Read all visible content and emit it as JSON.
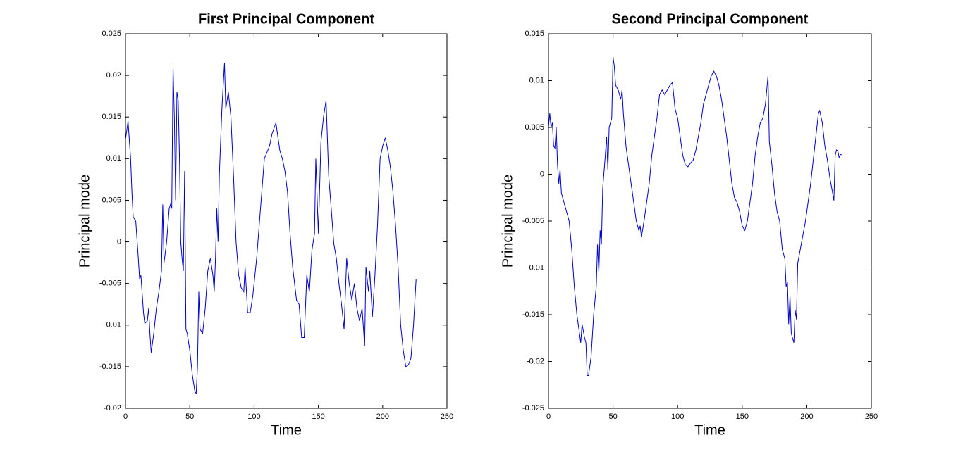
{
  "chart_data": [
    {
      "type": "line",
      "title": "First Principal Component",
      "x_label": "Time",
      "y_label": "Principal mode",
      "color": "#0000cc",
      "xlim": [
        0,
        250
      ],
      "xticks": [
        0,
        50,
        100,
        150,
        200,
        250
      ],
      "ylim": [
        -0.02,
        0.025
      ],
      "yticks": [
        -0.02,
        -0.015,
        -0.01,
        -0.005,
        0,
        0.005,
        0.01,
        0.015,
        0.02,
        0.025
      ],
      "x": [
        0,
        2,
        4,
        5,
        6,
        8,
        10,
        11,
        12,
        14,
        15,
        17,
        18,
        19,
        20,
        22,
        24,
        26,
        28,
        29,
        30,
        32,
        34,
        35,
        36,
        37,
        38,
        39,
        40,
        41,
        42,
        43,
        44,
        45,
        46,
        47,
        48,
        50,
        52,
        54,
        55,
        56,
        57,
        58,
        60,
        62,
        64,
        66,
        68,
        69,
        70,
        71,
        72,
        73,
        75,
        77,
        78,
        80,
        82,
        84,
        86,
        88,
        90,
        92,
        93,
        95,
        97,
        99,
        102,
        105,
        108,
        112,
        114,
        117,
        120,
        122,
        124,
        126,
        128,
        130,
        133,
        135,
        137,
        139,
        141,
        143,
        145,
        147,
        148,
        150,
        152,
        154,
        156,
        158,
        160,
        162,
        164,
        166,
        168,
        170,
        172,
        174,
        176,
        178,
        180,
        182,
        184,
        186,
        187,
        189,
        190,
        192,
        194,
        196,
        198,
        200,
        202,
        204,
        206,
        208,
        210,
        212,
        214,
        216,
        218,
        220,
        222,
        224,
        226
      ],
      "values": [
        0.0123,
        0.0145,
        0.01,
        0.006,
        0.003,
        0.0025,
        -0.002,
        -0.0045,
        -0.004,
        -0.0085,
        -0.0098,
        -0.0095,
        -0.008,
        -0.011,
        -0.0133,
        -0.011,
        -0.008,
        -0.006,
        -0.0035,
        0.0045,
        -0.0025,
        0,
        0.004,
        0.0045,
        0.004,
        0.021,
        0.015,
        0.005,
        0.018,
        0.017,
        0.01,
        0,
        -0.002,
        -0.0035,
        0.0085,
        -0.0105,
        -0.011,
        -0.013,
        -0.016,
        -0.018,
        -0.0182,
        -0.015,
        -0.006,
        -0.0105,
        -0.011,
        -0.008,
        -0.0035,
        -0.002,
        -0.004,
        -0.006,
        -0.002,
        0.004,
        0,
        0.008,
        0.016,
        0.0215,
        0.016,
        0.018,
        0.015,
        0.008,
        0,
        -0.004,
        -0.0055,
        -0.006,
        -0.003,
        -0.0085,
        -0.0085,
        -0.0065,
        -0.002,
        0.004,
        0.01,
        0.0115,
        0.013,
        0.0143,
        0.011,
        0.01,
        0.0085,
        0.006,
        0.001,
        -0.003,
        -0.007,
        -0.0075,
        -0.0115,
        -0.0115,
        -0.004,
        -0.006,
        -0.001,
        0.001,
        0.01,
        0.001,
        0.012,
        0.015,
        0.017,
        0.008,
        0.004,
        -0.0002,
        -0.002,
        -0.005,
        -0.0075,
        -0.0105,
        -0.002,
        -0.005,
        -0.007,
        -0.005,
        -0.008,
        -0.0095,
        -0.008,
        -0.0125,
        -0.003,
        -0.006,
        -0.0035,
        -0.009,
        -0.004,
        0.002,
        0.01,
        0.0115,
        0.0125,
        0.011,
        0.009,
        0.006,
        0.002,
        -0.003,
        -0.01,
        -0.013,
        -0.015,
        -0.0148,
        -0.014,
        -0.01,
        -0.0045
      ]
    },
    {
      "type": "line",
      "title": "Second Principal Component",
      "x_label": "Time",
      "y_label": "Principal mode",
      "color": "#0000cc",
      "xlim": [
        0,
        250
      ],
      "xticks": [
        0,
        50,
        100,
        150,
        200,
        250
      ],
      "ylim": [
        -0.025,
        0.015
      ],
      "yticks": [
        -0.025,
        -0.02,
        -0.015,
        -0.01,
        -0.005,
        0,
        0.005,
        0.01,
        0.015
      ],
      "x": [
        0,
        1,
        2,
        3,
        4,
        5,
        6,
        7,
        8,
        9,
        10,
        12,
        14,
        16,
        18,
        20,
        22,
        24,
        25,
        26,
        28,
        29,
        30,
        31,
        33,
        35,
        37,
        38,
        39,
        40,
        41,
        42,
        44,
        45,
        46,
        47,
        49,
        50,
        51,
        52,
        54,
        56,
        57,
        58,
        60,
        62,
        64,
        66,
        68,
        70,
        71,
        72,
        74,
        76,
        78,
        80,
        82,
        84,
        86,
        88,
        90,
        92,
        94,
        96,
        98,
        100,
        102,
        104,
        106,
        108,
        110,
        112,
        114,
        116,
        118,
        120,
        122,
        124,
        126,
        128,
        130,
        132,
        134,
        136,
        138,
        140,
        142,
        144,
        146,
        148,
        150,
        152,
        154,
        156,
        158,
        160,
        162,
        164,
        166,
        168,
        170,
        171,
        173,
        175,
        177,
        179,
        181,
        183,
        184,
        185,
        186,
        187,
        188,
        190,
        191,
        192,
        193,
        195,
        197,
        199,
        201,
        203,
        205,
        207,
        209,
        210,
        212,
        214,
        216,
        218,
        220,
        221,
        222,
        223,
        224,
        225,
        226,
        227
      ],
      "values": [
        0.005,
        0.0065,
        0.005,
        0.0055,
        0.003,
        0.0028,
        0.005,
        0.001,
        -0.001,
        0.0005,
        -0.002,
        -0.003,
        -0.004,
        -0.005,
        -0.008,
        -0.012,
        -0.015,
        -0.017,
        -0.018,
        -0.016,
        -0.0175,
        -0.018,
        -0.0215,
        -0.0215,
        -0.0195,
        -0.015,
        -0.012,
        -0.0075,
        -0.0105,
        -0.006,
        -0.0075,
        -0.0015,
        0.002,
        0.004,
        0.0005,
        0.005,
        0.006,
        0.0125,
        0.0115,
        0.0095,
        0.009,
        0.008,
        0.009,
        0.0065,
        0.003,
        0.001,
        -0.001,
        -0.003,
        -0.005,
        -0.006,
        -0.0055,
        -0.0067,
        -0.005,
        -0.003,
        -0.001,
        0.002,
        0.004,
        0.006,
        0.0085,
        0.009,
        0.0085,
        0.009,
        0.0095,
        0.0098,
        0.007,
        0.006,
        0.004,
        0.002,
        0.001,
        0.0008,
        0.0012,
        0.0015,
        0.0025,
        0.004,
        0.0055,
        0.0075,
        0.0085,
        0.0095,
        0.0105,
        0.011,
        0.0105,
        0.0095,
        0.008,
        0.006,
        0.004,
        0.0015,
        -0.001,
        -0.0025,
        -0.003,
        -0.004,
        -0.0055,
        -0.006,
        -0.005,
        -0.003,
        -0.001,
        0.002,
        0.004,
        0.0055,
        0.006,
        0.0075,
        0.0105,
        0.0035,
        0.001,
        -0.002,
        -0.004,
        -0.005,
        -0.008,
        -0.009,
        -0.012,
        -0.0115,
        -0.016,
        -0.013,
        -0.017,
        -0.018,
        -0.0145,
        -0.0155,
        -0.0095,
        -0.008,
        -0.0065,
        -0.005,
        -0.003,
        -0.001,
        0.0015,
        0.004,
        0.0065,
        0.0068,
        0.0055,
        0.003,
        0.0015,
        -0.0005,
        -0.002,
        -0.0028,
        0.002,
        0.0026,
        0.0025,
        0.0018,
        0.0021,
        0.0021
      ]
    }
  ]
}
